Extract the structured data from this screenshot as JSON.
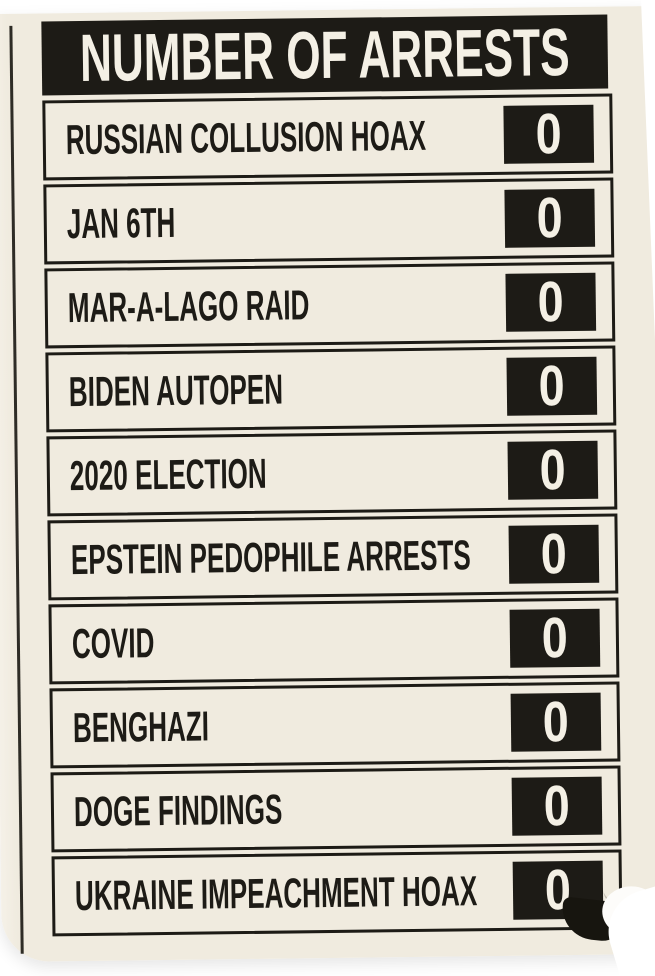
{
  "poster": {
    "title": "NUMBER OF ARRESTS",
    "rows": [
      {
        "label": "RUSSIAN COLLUSION HOAX",
        "value": "0"
      },
      {
        "label": "JAN 6TH",
        "value": "0"
      },
      {
        "label": "MAR-A-LAGO RAID",
        "value": "0"
      },
      {
        "label": "BIDEN AUTOPEN",
        "value": "0"
      },
      {
        "label": "2020 ELECTION",
        "value": "0"
      },
      {
        "label": "EPSTEIN PEDOPHILE ARRESTS",
        "value": "0"
      },
      {
        "label": "COVID",
        "value": "0"
      },
      {
        "label": "BENGHAZI",
        "value": "0"
      },
      {
        "label": "DOGE FINDINGS",
        "value": "0"
      },
      {
        "label": "UKRAINE IMPEACHMENT HOAX",
        "value": "0"
      }
    ],
    "colors": {
      "paper": "#f0ebdf",
      "ink": "#1d1b16",
      "digit": "#f4f0e5",
      "backdrop": "#ffffff"
    }
  },
  "chart_data": {
    "type": "table",
    "title": "NUMBER OF ARRESTS",
    "categories": [
      "RUSSIAN COLLUSION HOAX",
      "JAN 6TH",
      "MAR-A-LAGO RAID",
      "BIDEN AUTOPEN",
      "2020 ELECTION",
      "EPSTEIN PEDOPHILE ARRESTS",
      "COVID",
      "BENGHAZI",
      "DOGE FINDINGS",
      "UKRAINE IMPEACHMENT HOAX"
    ],
    "values": [
      0,
      0,
      0,
      0,
      0,
      0,
      0,
      0,
      0,
      0
    ],
    "layout": {
      "value_position": "right",
      "header_style": "black-bar",
      "grid": "row-borders"
    }
  }
}
